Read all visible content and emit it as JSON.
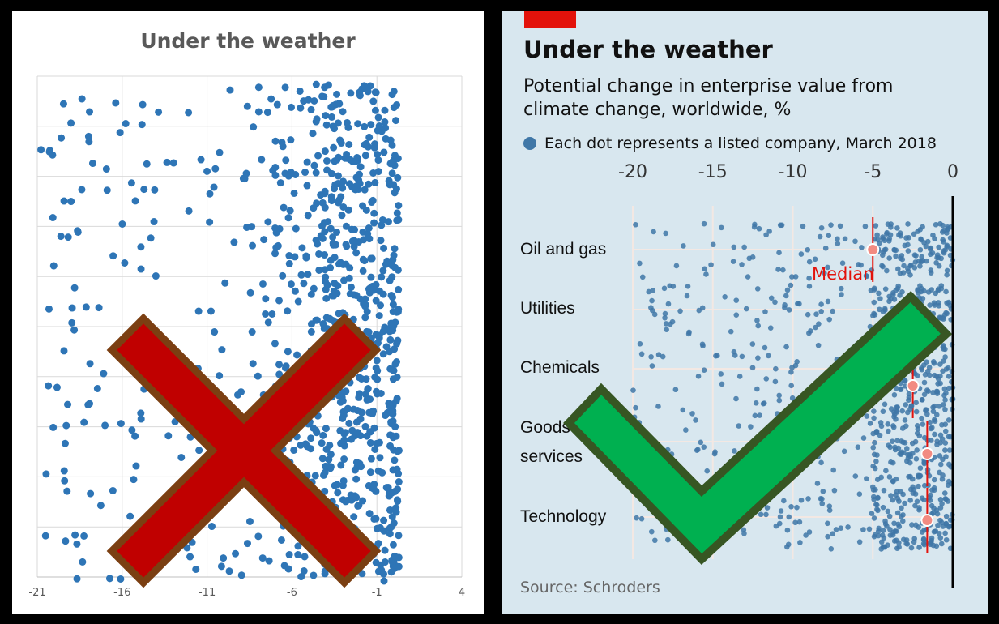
{
  "chart_data": [
    {
      "type": "scatter",
      "title": "Under the weather",
      "x_ticks": [
        "-21",
        "-16",
        "-11",
        "-6",
        "-1",
        "4"
      ],
      "xlim": [
        -21,
        4
      ],
      "grid": true,
      "series_color": "#2e75b6",
      "points_description": "dense cloud of dots concentrated between -4 and 0, sparser toward -21"
    },
    {
      "type": "scatter",
      "title": "Under the weather",
      "subtitle": "Potential change in enterprise value from climate change, worldwide, %",
      "legend": "Each dot represents a listed company, March 2018",
      "x_ticks": [
        "-20",
        "-15",
        "-10",
        "-5",
        "0"
      ],
      "xlim": [
        -20,
        0
      ],
      "categories": [
        "Oil and gas",
        "Utilities",
        "Chemicals",
        "Goods & services",
        "Technology"
      ],
      "category_lines": [
        [
          "Oil and gas"
        ],
        [
          "Utilities"
        ],
        [
          "Chemicals"
        ],
        [
          "Goods",
          "services"
        ],
        [
          "Technology"
        ]
      ],
      "medians": [
        -5,
        -2.5,
        -2.5,
        -1.6,
        -1.6
      ],
      "median_label": "Median",
      "source": "Source: Schroders",
      "series_color": "#3f77a7",
      "median_color": "#e3120b"
    }
  ],
  "overlays": {
    "cross_color": "#c00000",
    "cross_outline": "#7b3f12",
    "check_color": "#00b050",
    "check_outline": "#375623"
  }
}
